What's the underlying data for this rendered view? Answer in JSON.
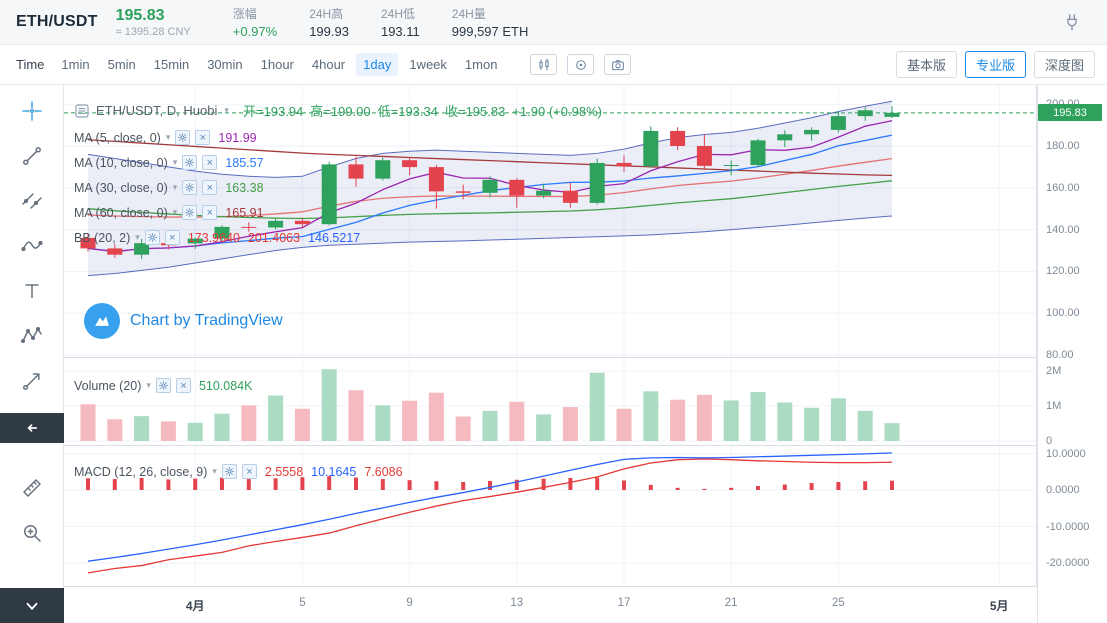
{
  "colors": {
    "up": "#2ea15d",
    "down": "#e2434d",
    "vol_up": "#abdcc3",
    "vol_down": "#f5bac0",
    "accent_blue": "#1e88e5",
    "badge_bg": "#2ea15d",
    "ma5": "#9c27b0",
    "ma10": "#2979ff",
    "ma30": "#43a047",
    "ma60": "#a33b3b",
    "bb": "#5b6bbf",
    "bb_mid": "#e57373",
    "macd_line": "#2962ff",
    "macd_signal": "#e53935",
    "macd_hist": "#e2434d"
  },
  "header": {
    "symbol": "ETH/USDT",
    "price": "195.83",
    "price_cny": "≈ 1395.28 CNY",
    "change_label": "涨幅",
    "change_value": "+0.97%",
    "high_label": "24H高",
    "high_value": "199.93",
    "low_label": "24H低",
    "low_value": "193.11",
    "volume_label": "24H量",
    "volume_value": "999,597 ETH"
  },
  "toolbar": {
    "time_label": "Time",
    "intervals": [
      "1min",
      "5min",
      "15min",
      "30min",
      "1hour",
      "4hour",
      "1day",
      "1week",
      "1mon"
    ],
    "active_interval": "1day",
    "view_buttons": [
      "基本版",
      "专业版",
      "深度图"
    ],
    "active_view": "专业版"
  },
  "sidebar": {
    "tools": [
      "crosshair",
      "trend-line",
      "parallel-lines",
      "curve",
      "text",
      "xabcd-pattern",
      "forecast",
      "collapse-left",
      "ruler",
      "zoom-in",
      "scroll-down"
    ]
  },
  "legends": {
    "main": {
      "title": "ETH/USDT, D, Huobi",
      "ohlc": [
        "开=193.94",
        "高=199.00",
        "低=193.34",
        "收=195.83",
        "+1.90 (+0.98%)"
      ]
    },
    "indicators": [
      {
        "name": "MA (5, close, 0)",
        "values": [
          {
            "v": "191.99",
            "c": "#9c27b0"
          }
        ]
      },
      {
        "name": "MA (10, close, 0)",
        "values": [
          {
            "v": "185.57",
            "c": "#2979ff"
          }
        ]
      },
      {
        "name": "MA (30, close, 0)",
        "values": [
          {
            "v": "163.38",
            "c": "#43a047"
          }
        ]
      },
      {
        "name": "MA (60, close, 0)",
        "values": [
          {
            "v": "165.91",
            "c": "#a33b3b"
          }
        ]
      },
      {
        "name": "BB (20, 2)",
        "values": [
          {
            "v": "173.9640",
            "c": "#e53935"
          },
          {
            "v": "201.4063",
            "c": "#e53935"
          },
          {
            "v": "146.5217",
            "c": "#2962ff"
          }
        ]
      }
    ],
    "volume": {
      "name": "Volume (20)",
      "values": [
        {
          "v": "510.084K",
          "c": "#2ea15d"
        }
      ]
    },
    "macd": {
      "name": "MACD (12, 26, close, 9)",
      "values": [
        {
          "v": "2.5558",
          "c": "#e53935"
        },
        {
          "v": "10.1645",
          "c": "#2962ff"
        },
        {
          "v": "7.6086",
          "c": "#e53935"
        }
      ]
    }
  },
  "watermark": {
    "text": "Chart by TradingView"
  },
  "chart_data": {
    "type": "candlestick",
    "symbol": "ETH/USDT",
    "interval": "1day",
    "exchange": "Huobi",
    "last_price": 195.83,
    "candles": {
      "columns": [
        "date",
        "open",
        "high",
        "low",
        "close",
        "volume_M"
      ],
      "rows": [
        [
          "03-28",
          136.0,
          138.0,
          129.5,
          131.0,
          1.05
        ],
        [
          "03-29",
          131.0,
          133.0,
          126.5,
          128.0,
          0.62
        ],
        [
          "03-30",
          128.0,
          135.5,
          126.0,
          133.5,
          0.71
        ],
        [
          "03-31",
          133.5,
          135.5,
          130.5,
          132.5,
          0.56
        ],
        [
          "04-01",
          133.4,
          136.2,
          130.8,
          135.7,
          0.52
        ],
        [
          "04-02",
          135.7,
          142.0,
          134.8,
          141.3,
          0.78
        ],
        [
          "04-03",
          141.3,
          143.5,
          139.0,
          141.0,
          1.02
        ],
        [
          "04-04",
          141.0,
          145.5,
          140.0,
          144.2,
          1.3
        ],
        [
          "04-05",
          144.2,
          145.8,
          141.0,
          142.6,
          0.92
        ],
        [
          "04-06",
          142.6,
          172.5,
          142.0,
          171.2,
          2.05
        ],
        [
          "04-07",
          171.2,
          175.0,
          160.5,
          164.4,
          1.45
        ],
        [
          "04-08",
          164.4,
          174.5,
          163.5,
          173.2,
          1.02
        ],
        [
          "04-09",
          173.2,
          174.8,
          166.0,
          169.9,
          1.15
        ],
        [
          "04-10",
          169.9,
          171.0,
          150.0,
          158.3,
          1.38
        ],
        [
          "04-11",
          158.3,
          161.5,
          154.5,
          157.6,
          0.7
        ],
        [
          "04-12",
          157.6,
          165.5,
          155.5,
          163.8,
          0.86
        ],
        [
          "04-13",
          163.8,
          164.5,
          150.5,
          156.3,
          1.12
        ],
        [
          "04-14",
          156.3,
          162.0,
          155.0,
          158.6,
          0.76
        ],
        [
          "04-15",
          158.6,
          162.5,
          150.5,
          152.8,
          0.97
        ],
        [
          "04-16",
          152.8,
          174.0,
          152.0,
          171.9,
          1.95
        ],
        [
          "04-17",
          171.9,
          175.5,
          167.5,
          170.3,
          0.92
        ],
        [
          "04-18",
          170.3,
          189.5,
          169.5,
          187.2,
          1.42
        ],
        [
          "04-19",
          187.2,
          189.0,
          178.0,
          180.0,
          1.18
        ],
        [
          "04-20",
          180.0,
          185.5,
          168.5,
          170.5,
          1.32
        ],
        [
          "04-21",
          170.5,
          173.0,
          166.0,
          170.9,
          1.16
        ],
        [
          "04-22",
          170.9,
          183.5,
          170.0,
          182.7,
          1.4
        ],
        [
          "04-23",
          182.7,
          187.5,
          179.5,
          185.6,
          1.1
        ],
        [
          "04-24",
          185.6,
          189.0,
          182.5,
          187.7,
          0.95
        ],
        [
          "04-25",
          187.7,
          196.5,
          186.5,
          194.3,
          1.22
        ],
        [
          "04-26",
          194.3,
          198.5,
          192.0,
          197.1,
          0.86
        ],
        [
          "04-27",
          193.94,
          199.0,
          193.34,
          195.83,
          0.51
        ]
      ]
    },
    "ma30": [
      150,
      149,
      148.2,
      147.5,
      146.8,
      146.2,
      145.8,
      145.5,
      145.3,
      145.6,
      146.2,
      146.8,
      147.3,
      147.6,
      147.8,
      148,
      148.3,
      148.6,
      148.9,
      149.5,
      150.4,
      151.6,
      152.8,
      153.8,
      154.8,
      156.2,
      157.7,
      159.2,
      160.7,
      162,
      163.38
    ],
    "ma60": [
      183,
      182.2,
      181.4,
      180.6,
      179.8,
      179,
      178.2,
      177.4,
      176.6,
      176,
      175.5,
      175,
      174.5,
      174,
      173.5,
      173,
      172.5,
      172,
      171.5,
      171,
      170.5,
      170,
      169.5,
      169,
      168.5,
      168,
      167.5,
      167,
      166.6,
      166.2,
      165.91
    ],
    "bb_upper": [
      176,
      174,
      172,
      170,
      168,
      166.5,
      165.5,
      165,
      165.5,
      170,
      174,
      176.5,
      177.5,
      178,
      177.5,
      177,
      176.5,
      176,
      175.5,
      176.5,
      178.5,
      181.5,
      184,
      185.5,
      186.5,
      188.5,
      191,
      193.5,
      196.5,
      199,
      201.4063
    ],
    "bb_mid": [
      147,
      146.5,
      146.2,
      146,
      146,
      146.2,
      146.7,
      147.5,
      148.5,
      151.2,
      153.5,
      155,
      155.7,
      156.1,
      156,
      156,
      155.9,
      155.9,
      155.8,
      156.5,
      157.7,
      159.5,
      161.1,
      162.2,
      163.2,
      164.7,
      166.5,
      168.3,
      170.4,
      172.2,
      173.964
    ],
    "bb_lower": [
      118,
      119,
      120.5,
      122,
      124,
      126,
      128,
      130,
      131.5,
      132.5,
      133,
      133.5,
      134,
      134.3,
      134.6,
      135,
      135.4,
      135.8,
      136.2,
      136.6,
      137,
      137.5,
      138.2,
      139,
      140,
      141,
      142,
      143.2,
      144.4,
      145.5,
      146.5217
    ],
    "macd": [
      -19.5,
      -18.5,
      -17.4,
      -16.2,
      -15.0,
      -13.7,
      -12.3,
      -10.9,
      -9.5,
      -8.0,
      -6.4,
      -4.9,
      -3.4,
      -2.0,
      -0.7,
      0.7,
      2.2,
      3.8,
      5.4,
      7.0,
      8.4,
      8.8,
      8.9,
      8.8,
      8.9,
      9.1,
      9.3,
      9.5,
      9.7,
      9.9,
      10.1645
    ],
    "macd_hist": [
      3.2,
      3.0,
      3.3,
      2.9,
      3.1,
      3.4,
      3.0,
      3.2,
      3.5,
      3.8,
      3.4,
      3.0,
      2.7,
      2.4,
      2.2,
      2.5,
      2.8,
      3.1,
      3.3,
      3.4,
      2.6,
      1.4,
      0.6,
      0.3,
      0.6,
      1.1,
      1.5,
      1.9,
      2.2,
      2.4,
      2.5558
    ],
    "axes": {
      "price_ticks": [
        200,
        180,
        160,
        140,
        120,
        100,
        80
      ],
      "volume_ticks": [
        {
          "label": "2M",
          "v": 2
        },
        {
          "label": "1M",
          "v": 1
        },
        {
          "label": "0",
          "v": 0
        }
      ],
      "macd_ticks": [
        10,
        0,
        -10,
        -20
      ],
      "time_ticks": [
        {
          "label": "4月",
          "i": 4
        },
        {
          "label": "5",
          "i": 8
        },
        {
          "label": "9",
          "i": 12
        },
        {
          "label": "13",
          "i": 16
        },
        {
          "label": "17",
          "i": 20
        },
        {
          "label": "21",
          "i": 24
        },
        {
          "label": "25",
          "i": 28
        },
        {
          "label": "5月",
          "i": 34
        }
      ]
    },
    "legend_note": "volume legend current value 510.084K; MACD(12,26,close,9)=2.5558/10.1645/7.6086; MA5=191.99 MA10=185.57 MA30=163.38 MA60=165.91; BB(20,2)=173.9640/201.4063/146.5217"
  }
}
